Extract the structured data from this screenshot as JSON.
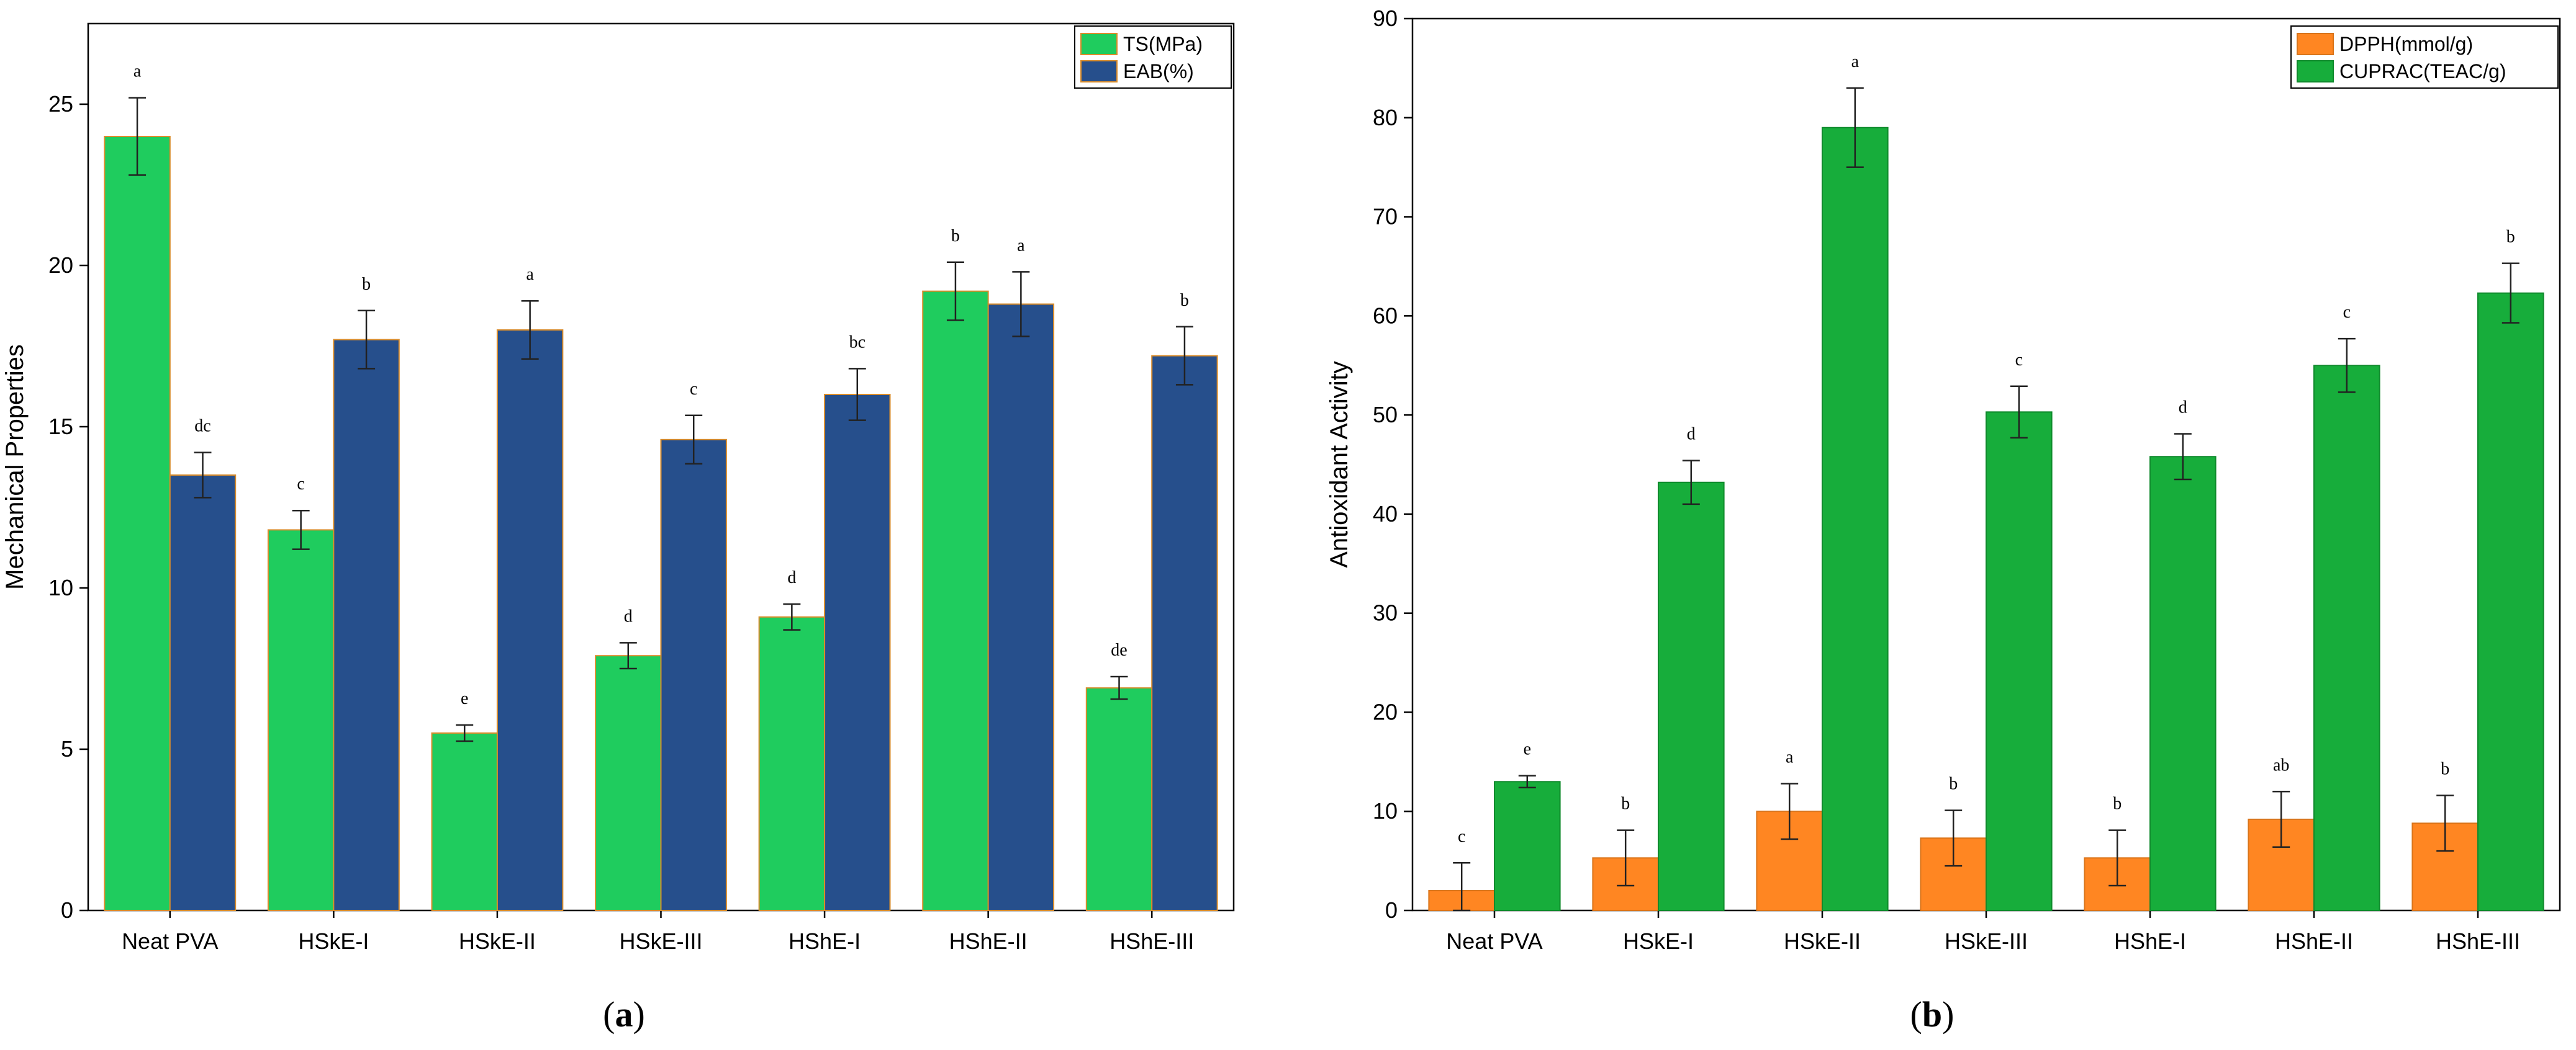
{
  "chart_data": [
    {
      "type": "bar",
      "panel_label": "a",
      "ylabel": "Mechanical Properties",
      "xlabel": "",
      "ylim": [
        0,
        27.5
      ],
      "yticks": [
        0,
        5,
        10,
        15,
        20,
        25
      ],
      "categories": [
        "Neat PVA",
        "HSkE-I",
        "HSkE-II",
        "HSkE-III",
        "HShE-I",
        "HShE-II",
        "HShE-III"
      ],
      "legend_position": "top-right",
      "series": [
        {
          "name": "TS(MPa)",
          "color": "#1fcc5e",
          "edge": "#d98c2b",
          "values": [
            24.0,
            11.8,
            5.5,
            7.9,
            9.1,
            19.2,
            6.9
          ],
          "errors": [
            1.2,
            0.6,
            0.25,
            0.4,
            0.4,
            0.9,
            0.35
          ],
          "letters": [
            "a",
            "c",
            "e",
            "d",
            "d",
            "b",
            "de"
          ]
        },
        {
          "name": "EAB(%)",
          "color": "#264f8c",
          "edge": "#d98c2b",
          "values": [
            13.5,
            17.7,
            18.0,
            14.6,
            16.0,
            18.8,
            17.2
          ],
          "errors": [
            0.7,
            0.9,
            0.9,
            0.75,
            0.8,
            1.0,
            0.9
          ],
          "letters": [
            "dc",
            "b",
            "a",
            "c",
            "bc",
            "a",
            "b"
          ]
        }
      ]
    },
    {
      "type": "bar",
      "panel_label": "b",
      "ylabel": "Antioxidant Activity",
      "xlabel": "",
      "ylim": [
        0,
        90
      ],
      "yticks": [
        0,
        10,
        20,
        30,
        40,
        50,
        60,
        70,
        80,
        90
      ],
      "categories": [
        "Neat PVA",
        "HSkE-I",
        "HSkE-II",
        "HSkE-III",
        "HShE-I",
        "HShE-II",
        "HShE-III"
      ],
      "legend_position": "top-right",
      "series": [
        {
          "name": "DPPH(mmol/g)",
          "color": "#ff8622",
          "edge": "#d9741a",
          "values": [
            2.0,
            5.3,
            10.0,
            7.3,
            5.3,
            9.2,
            8.8
          ],
          "errors": [
            2.8,
            2.8,
            2.8,
            2.8,
            2.8,
            2.8,
            2.8
          ],
          "letters": [
            "c",
            "b",
            "a",
            "b",
            "b",
            "ab",
            "b"
          ]
        },
        {
          "name": "CUPRAC(TEAC/g)",
          "color": "#17ad3b",
          "edge": "#0f8a2c",
          "values": [
            13.0,
            43.2,
            79.0,
            50.3,
            45.8,
            55.0,
            62.3
          ],
          "errors": [
            0.6,
            2.2,
            4.0,
            2.6,
            2.3,
            2.7,
            3.0
          ],
          "letters": [
            "e",
            "d",
            "a",
            "c",
            "d",
            "c",
            "b"
          ]
        }
      ]
    }
  ]
}
